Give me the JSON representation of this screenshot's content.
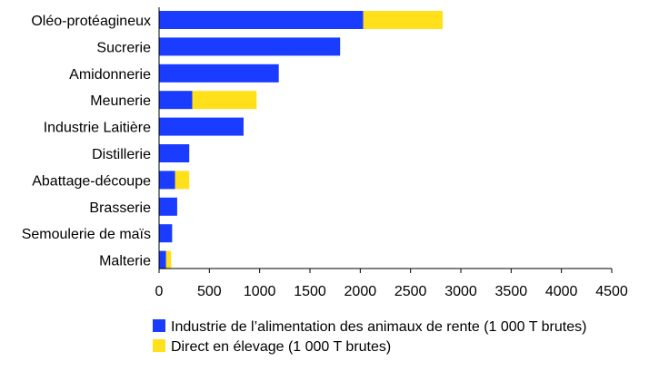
{
  "chart_data": {
    "type": "bar",
    "orientation": "horizontal",
    "stacked": true,
    "title": "",
    "xlabel": "",
    "ylabel": "",
    "categories": [
      "Oléo-protéagineux",
      "Sucrerie",
      "Amidonnerie",
      "Meunerie",
      "Industrie Laitière",
      "Distillerie",
      "Abattage-découpe",
      "Brasserie",
      "Semoulerie de maïs",
      "Malterie"
    ],
    "series": [
      {
        "name": "Industrie de l’alimentation des animaux de rente (1 000 T brutes)",
        "color": "#1a3cff",
        "values": [
          2030,
          1800,
          1190,
          330,
          840,
          300,
          160,
          180,
          130,
          70
        ]
      },
      {
        "name": "Direct en élevage (1 000 T brutes)",
        "color": "#ffe01a",
        "values": [
          790,
          0,
          0,
          640,
          0,
          0,
          140,
          0,
          0,
          50
        ]
      }
    ],
    "xlim": [
      0,
      4500
    ],
    "xticks": [
      0,
      500,
      1000,
      1500,
      2000,
      2500,
      3000,
      3500,
      4000,
      4500
    ],
    "grid": false,
    "legend_position": "bottom"
  }
}
